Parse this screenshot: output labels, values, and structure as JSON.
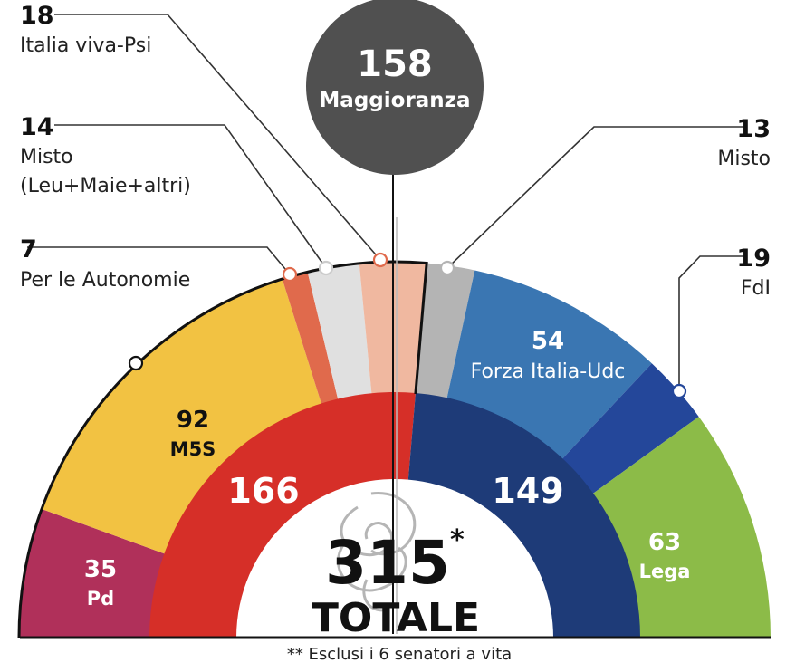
{
  "chart_data": {
    "type": "semicircle-parliament",
    "total": "315",
    "total_mark": "*",
    "total_label": "TOTALE",
    "majority": {
      "value": "158",
      "label": "Maggioranza"
    },
    "footnote": "** Esclusi i 6 senatori a vita",
    "outer_order": [
      "pd",
      "m5s",
      "autonomie",
      "misto_sx",
      "iv",
      "misto_dx",
      "fi",
      "fdi",
      "lega"
    ],
    "parties": {
      "pd": {
        "value": 35,
        "label": "Pd",
        "color": "#b0305a"
      },
      "m5s": {
        "value": 92,
        "label": "M5S",
        "color": "#f2c242"
      },
      "autonomie": {
        "value": 7,
        "label": "Per le Autonomie",
        "color": "#e06a4c"
      },
      "misto_sx": {
        "value": 14,
        "label": "Misto",
        "label2": "(Leu+Maie+altri)",
        "color": "#e0e0e0"
      },
      "iv": {
        "value": 18,
        "label": "Italia viva-Psi",
        "color": "#f0b8a0"
      },
      "misto_dx": {
        "value": 13,
        "label": "Misto",
        "color": "#b4b4b4"
      },
      "fi": {
        "value": 54,
        "label": "Forza Italia-Udc",
        "color": "#3a76b2"
      },
      "fdi": {
        "value": 19,
        "label": "FdI",
        "color": "#24479a"
      },
      "lega": {
        "value": 63,
        "label": "Lega",
        "color": "#8cbb48"
      }
    },
    "coalitions": [
      {
        "value": 166,
        "label": "166",
        "color": "#d62f28"
      },
      {
        "value": 149,
        "label": "149",
        "color": "#1e3b78"
      }
    ]
  }
}
